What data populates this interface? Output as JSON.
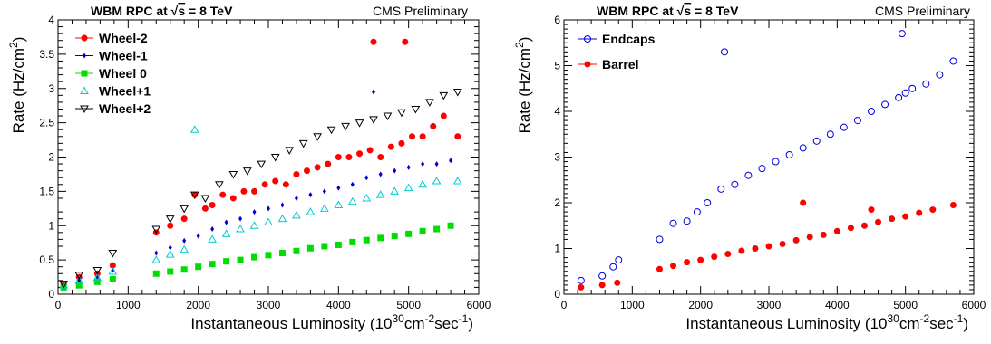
{
  "chart_data": [
    {
      "type": "scatter",
      "title": "WBM RPC at √s = 8 TeV",
      "title_parts": {
        "prefix": "WBM RPC at ",
        "sqrt_arg": "s",
        "suffix": " = 8 TeV"
      },
      "corner_label": "CMS Preliminary",
      "xlabel": "Instantaneous Luminosity (10^30cm^-2sec^-1)",
      "xlabel_parts": {
        "a": "Instantaneous Luminosity (10",
        "b": "30",
        "c": "cm",
        "d": "-2",
        "e": "sec",
        "f": "-1",
        "g": ")"
      },
      "ylabel": "Rate (Hz/cm^2)",
      "ylabel_parts": {
        "a": "Rate (Hz/cm",
        "b": "2",
        "c": ")"
      },
      "xlim": [
        0,
        6000
      ],
      "ylim": [
        0,
        4
      ],
      "xticks": [
        "0",
        "1000",
        "2000",
        "3000",
        "4000",
        "5000",
        "6000"
      ],
      "yticks": [
        "0",
        "0.5",
        "1",
        "1.5",
        "2",
        "2.5",
        "3",
        "3.5",
        "4"
      ],
      "grid": false,
      "legend_position": "top-left",
      "series": [
        {
          "name": "Wheel-2",
          "color": "#ff0000",
          "marker": "filled-circle",
          "x": [
            80,
            300,
            560,
            780,
            1400,
            1600,
            1800,
            1950,
            2100,
            2200,
            2350,
            2500,
            2650,
            2800,
            2950,
            3100,
            3250,
            3400,
            3550,
            3700,
            3850,
            4000,
            4150,
            4300,
            4450,
            4600,
            4750,
            4900,
            5050,
            5200,
            5350,
            5500,
            5700,
            4500,
            4950
          ],
          "y": [
            0.14,
            0.25,
            0.3,
            0.42,
            0.9,
            1.0,
            1.1,
            1.45,
            1.25,
            1.3,
            1.45,
            1.4,
            1.5,
            1.5,
            1.6,
            1.65,
            1.6,
            1.75,
            1.8,
            1.85,
            1.9,
            2.0,
            2.0,
            2.05,
            2.1,
            2.0,
            2.15,
            2.2,
            2.3,
            2.3,
            2.45,
            2.6,
            2.3,
            3.68,
            3.68
          ]
        },
        {
          "name": "Wheel-1",
          "color": "#0000cc",
          "marker": "filled-diamond",
          "x": [
            80,
            300,
            560,
            780,
            1400,
            1600,
            1800,
            2000,
            2200,
            2400,
            2600,
            2800,
            3000,
            3200,
            3400,
            3600,
            3800,
            4000,
            4200,
            4400,
            4500,
            4600,
            4800,
            5000,
            5200,
            5400,
            5600
          ],
          "y": [
            0.12,
            0.2,
            0.25,
            0.35,
            0.6,
            0.68,
            0.78,
            0.85,
            0.95,
            1.05,
            1.1,
            1.2,
            1.25,
            1.3,
            1.4,
            1.45,
            1.5,
            1.55,
            1.6,
            1.7,
            2.95,
            1.75,
            1.8,
            1.85,
            1.9,
            1.9,
            1.95
          ]
        },
        {
          "name": "Wheel 0",
          "color": "#00dd00",
          "marker": "filled-square",
          "x": [
            80,
            300,
            560,
            780,
            1400,
            1600,
            1800,
            2000,
            2200,
            2400,
            2600,
            2800,
            3000,
            3200,
            3400,
            3600,
            3800,
            4000,
            4200,
            4400,
            4600,
            4800,
            5000,
            5200,
            5400,
            5600
          ],
          "y": [
            0.1,
            0.13,
            0.18,
            0.22,
            0.3,
            0.33,
            0.36,
            0.4,
            0.44,
            0.48,
            0.5,
            0.54,
            0.57,
            0.6,
            0.63,
            0.67,
            0.7,
            0.72,
            0.76,
            0.79,
            0.82,
            0.85,
            0.88,
            0.92,
            0.95,
            1.0
          ]
        },
        {
          "name": "Wheel+1",
          "color": "#00cccc",
          "marker": "open-triangle-up",
          "x": [
            80,
            300,
            560,
            780,
            1400,
            1600,
            1800,
            1950,
            2200,
            2400,
            2600,
            2800,
            3000,
            3200,
            3400,
            3600,
            3800,
            4000,
            4200,
            4400,
            4600,
            4800,
            5000,
            5200,
            5400,
            5700
          ],
          "y": [
            0.13,
            0.2,
            0.24,
            0.33,
            0.5,
            0.58,
            0.65,
            2.4,
            0.8,
            0.88,
            0.95,
            1.0,
            1.05,
            1.1,
            1.15,
            1.2,
            1.25,
            1.3,
            1.35,
            1.4,
            1.45,
            1.5,
            1.55,
            1.6,
            1.65,
            1.65
          ]
        },
        {
          "name": "Wheel+2",
          "color": "#000000",
          "marker": "open-triangle-down",
          "x": [
            80,
            300,
            560,
            780,
            1400,
            1600,
            1800,
            1950,
            2100,
            2300,
            2500,
            2700,
            2900,
            3100,
            3300,
            3500,
            3700,
            3900,
            4100,
            4300,
            4500,
            4700,
            4900,
            5100,
            5300,
            5500,
            5700
          ],
          "y": [
            0.15,
            0.28,
            0.35,
            0.6,
            0.95,
            1.1,
            1.25,
            1.45,
            1.4,
            1.6,
            1.75,
            1.8,
            1.9,
            2.0,
            2.1,
            2.2,
            2.3,
            2.4,
            2.45,
            2.5,
            2.55,
            2.6,
            2.65,
            2.7,
            2.8,
            2.9,
            2.95
          ]
        }
      ]
    },
    {
      "type": "scatter",
      "title": "WBM RPC at √s = 8 TeV",
      "title_parts": {
        "prefix": "WBM RPC at ",
        "sqrt_arg": "s",
        "suffix": " = 8 TeV"
      },
      "corner_label": "CMS Preliminary",
      "xlabel": "Instantaneous Luminosity (10^30cm^-2sec^-1)",
      "xlabel_parts": {
        "a": "Instantaneous Luminosity (10",
        "b": "30",
        "c": "cm",
        "d": "-2",
        "e": "sec",
        "f": "-1",
        "g": ")"
      },
      "ylabel": "Rate (Hz/cm^2)",
      "ylabel_parts": {
        "a": "Rate (Hz/cm",
        "b": "2",
        "c": ")"
      },
      "xlim": [
        0,
        6000
      ],
      "ylim": [
        0,
        6
      ],
      "xticks": [
        "0",
        "1000",
        "2000",
        "3000",
        "4000",
        "5000",
        "6000"
      ],
      "yticks": [
        "0",
        "1",
        "2",
        "3",
        "4",
        "5",
        "6"
      ],
      "grid": false,
      "legend_position": "top-left",
      "series": [
        {
          "name": "Endcaps",
          "color": "#0000dd",
          "marker": "open-circle",
          "x": [
            250,
            560,
            720,
            800,
            1400,
            1600,
            1800,
            1950,
            2100,
            2300,
            2500,
            2700,
            2900,
            3100,
            3300,
            3500,
            3700,
            3900,
            4100,
            4300,
            4500,
            4700,
            4900,
            5000,
            5100,
            5300,
            5500,
            5700,
            2350,
            4950
          ],
          "y": [
            0.3,
            0.4,
            0.6,
            0.75,
            1.2,
            1.55,
            1.6,
            1.8,
            2.0,
            2.3,
            2.4,
            2.6,
            2.75,
            2.9,
            3.05,
            3.2,
            3.35,
            3.5,
            3.65,
            3.8,
            4.0,
            4.15,
            4.3,
            4.4,
            4.5,
            4.6,
            4.8,
            5.1,
            5.3,
            5.7
          ]
        },
        {
          "name": "Barrel",
          "color": "#ff0000",
          "marker": "filled-circle",
          "x": [
            250,
            560,
            780,
            1400,
            1600,
            1800,
            2000,
            2200,
            2400,
            2600,
            2800,
            3000,
            3200,
            3400,
            3600,
            3800,
            4000,
            4200,
            4400,
            4600,
            4800,
            5000,
            5200,
            5400,
            5700,
            3500,
            4500
          ],
          "y": [
            0.15,
            0.2,
            0.25,
            0.55,
            0.62,
            0.7,
            0.75,
            0.82,
            0.88,
            0.95,
            1.0,
            1.05,
            1.1,
            1.18,
            1.25,
            1.3,
            1.38,
            1.45,
            1.5,
            1.58,
            1.65,
            1.7,
            1.78,
            1.85,
            1.95,
            2.0,
            1.85
          ]
        }
      ]
    }
  ]
}
